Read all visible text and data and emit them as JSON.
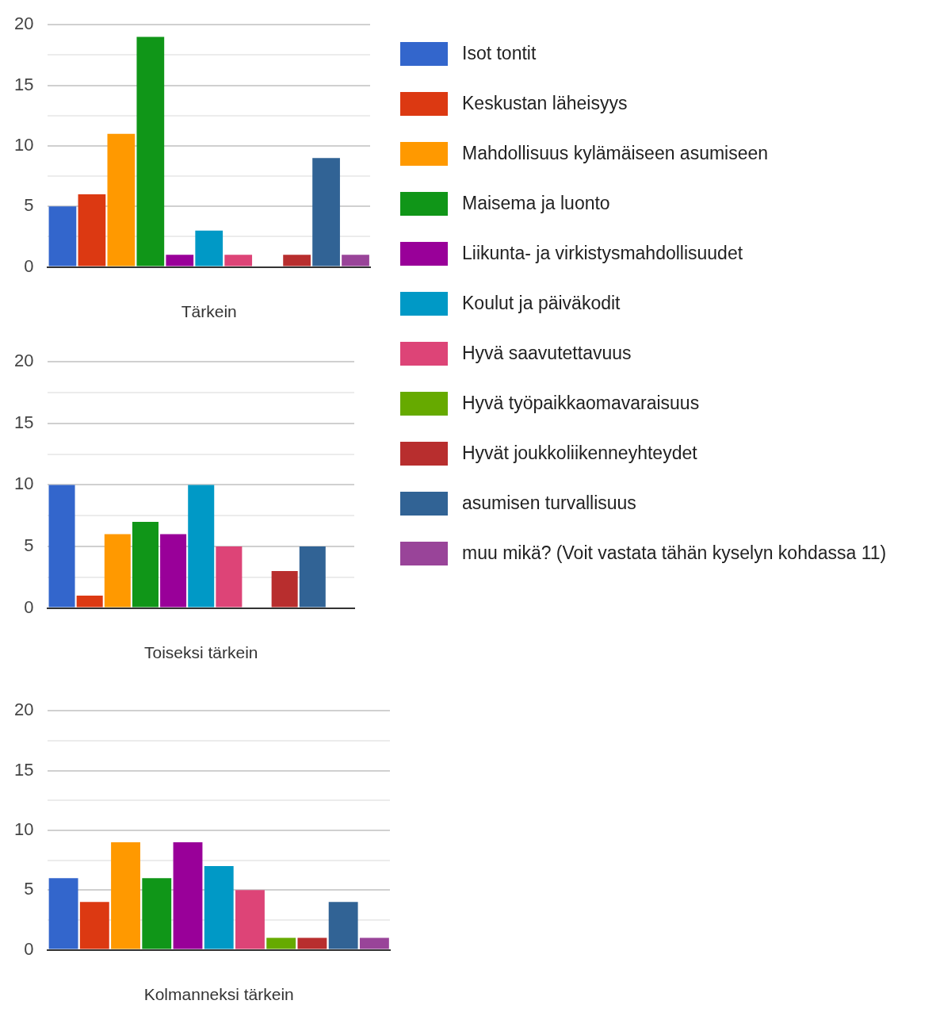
{
  "chart_data": [
    {
      "type": "bar",
      "xlabel": "Tärkein",
      "categories": [
        null,
        null,
        null,
        null,
        null,
        null,
        null,
        null,
        null,
        null,
        null
      ],
      "ylim": [
        0,
        20
      ],
      "yticks": [
        0,
        {
          "value": 2.5,
          "label": null
        },
        5,
        {
          "value": 7.5,
          "label": null
        },
        10,
        {
          "value": 12.5,
          "label": null
        },
        15,
        {
          "value": 17.5,
          "label": null
        },
        20
      ],
      "grid": "y",
      "legend": "right",
      "series": [
        {
          "name": "Isot tontit",
          "color": "#3366cc",
          "values": [
            5,
            null,
            null,
            null,
            null,
            null,
            null,
            null,
            null,
            null,
            null
          ]
        },
        {
          "name": "Keskustan läheisyys",
          "color": "#dc3912",
          "values": [
            null,
            6,
            null,
            null,
            null,
            null,
            null,
            null,
            null,
            null,
            null
          ]
        },
        {
          "name": "Mahdollisuus kylämäiseen asumiseen",
          "color": "#ff9900",
          "values": [
            null,
            null,
            11,
            null,
            null,
            null,
            null,
            null,
            null,
            null,
            null
          ]
        },
        {
          "name": "Maisema ja luonto",
          "color": "#109618",
          "values": [
            null,
            null,
            null,
            19,
            null,
            null,
            null,
            null,
            null,
            null,
            null
          ]
        },
        {
          "name": "Liikunta- ja virkistysmahdollisuudet",
          "color": "#990099",
          "values": [
            null,
            null,
            null,
            null,
            1,
            null,
            null,
            null,
            null,
            null,
            null
          ]
        },
        {
          "name": "Koulut ja päiväkodit",
          "color": "#0099c6",
          "values": [
            null,
            null,
            null,
            null,
            null,
            3,
            null,
            null,
            null,
            null,
            null
          ]
        },
        {
          "name": "Hyvä saavutettavuus",
          "color": "#dd4477",
          "values": [
            null,
            null,
            null,
            null,
            null,
            null,
            1,
            null,
            null,
            null,
            null
          ]
        },
        {
          "name": "Hyvä työpaikkaomavaraisuus",
          "color": "#66aa00",
          "values": [
            null,
            null,
            null,
            null,
            null,
            null,
            null,
            0,
            null,
            null,
            null
          ]
        },
        {
          "name": "Hyvät joukkoliikenneyhteydet",
          "color": "#b82e2e",
          "values": [
            null,
            null,
            null,
            null,
            null,
            null,
            null,
            null,
            1,
            null,
            null
          ]
        },
        {
          "name": "asumisen turvallisuus",
          "color": "#316395",
          "values": [
            null,
            null,
            null,
            null,
            null,
            null,
            null,
            null,
            null,
            9,
            null
          ]
        },
        {
          "name": "muu mikä? (Voit vastata tähän kyselyn kohdassa 11)",
          "color": "#994499",
          "values": [
            null,
            null,
            null,
            null,
            null,
            null,
            null,
            null,
            null,
            null,
            1
          ]
        }
      ]
    },
    {
      "type": "bar",
      "xlabel": "Toiseksi tärkein",
      "categories": [
        null,
        null,
        null,
        null,
        null,
        null,
        null,
        null,
        null,
        null,
        null
      ],
      "ylim": [
        0,
        20
      ],
      "yticks": [
        0,
        {
          "value": 2.5,
          "label": null
        },
        5,
        {
          "value": 7.5,
          "label": null
        },
        10,
        {
          "value": 12.5,
          "label": null
        },
        15,
        {
          "value": 17.5,
          "label": null
        },
        20
      ],
      "grid": "y",
      "series": [
        {
          "color": "#3366cc",
          "values": [
            10,
            null,
            null,
            null,
            null,
            null,
            null,
            null,
            null,
            null,
            null
          ]
        },
        {
          "color": "#dc3912",
          "values": [
            null,
            1,
            null,
            null,
            null,
            null,
            null,
            null,
            null,
            null,
            null
          ]
        },
        {
          "color": "#ff9900",
          "values": [
            null,
            null,
            6,
            null,
            null,
            null,
            null,
            null,
            null,
            null,
            null
          ]
        },
        {
          "color": "#109618",
          "values": [
            null,
            null,
            null,
            7,
            null,
            null,
            null,
            null,
            null,
            null,
            null
          ]
        },
        {
          "color": "#990099",
          "values": [
            null,
            null,
            null,
            null,
            6,
            null,
            null,
            null,
            null,
            null,
            null
          ]
        },
        {
          "color": "#0099c6",
          "values": [
            null,
            null,
            null,
            null,
            null,
            10,
            null,
            null,
            null,
            null,
            null
          ]
        },
        {
          "color": "#dd4477",
          "values": [
            null,
            null,
            null,
            null,
            null,
            null,
            5,
            null,
            null,
            null,
            null
          ]
        },
        {
          "color": "#66aa00",
          "values": [
            null,
            null,
            null,
            null,
            null,
            null,
            null,
            0,
            null,
            null,
            null
          ]
        },
        {
          "color": "#b82e2e",
          "values": [
            null,
            null,
            null,
            null,
            null,
            null,
            null,
            null,
            3,
            null,
            null
          ]
        },
        {
          "color": "#316395",
          "values": [
            null,
            null,
            null,
            null,
            null,
            null,
            null,
            null,
            null,
            5,
            null
          ]
        },
        {
          "color": "#994499",
          "values": [
            null,
            null,
            null,
            null,
            null,
            null,
            null,
            null,
            null,
            null,
            0
          ]
        }
      ]
    },
    {
      "type": "bar",
      "xlabel": "Kolmanneksi tärkein",
      "categories": [
        null,
        null,
        null,
        null,
        null,
        null,
        null,
        null,
        null,
        null,
        null
      ],
      "ylim": [
        0,
        20
      ],
      "yticks": [
        0,
        {
          "value": 2.5,
          "label": null
        },
        5,
        {
          "value": 7.5,
          "label": null
        },
        10,
        {
          "value": 12.5,
          "label": null
        },
        15,
        {
          "value": 17.5,
          "label": null
        },
        20
      ],
      "grid": "y",
      "series": [
        {
          "color": "#3366cc",
          "values": [
            6,
            null,
            null,
            null,
            null,
            null,
            null,
            null,
            null,
            null,
            null
          ]
        },
        {
          "color": "#dc3912",
          "values": [
            null,
            4,
            null,
            null,
            null,
            null,
            null,
            null,
            null,
            null,
            null
          ]
        },
        {
          "color": "#ff9900",
          "values": [
            null,
            null,
            9,
            null,
            null,
            null,
            null,
            null,
            null,
            null,
            null
          ]
        },
        {
          "color": "#109618",
          "values": [
            null,
            null,
            null,
            6,
            null,
            null,
            null,
            null,
            null,
            null,
            null
          ]
        },
        {
          "color": "#990099",
          "values": [
            null,
            null,
            null,
            null,
            9,
            null,
            null,
            null,
            null,
            null,
            null
          ]
        },
        {
          "color": "#0099c6",
          "values": [
            null,
            null,
            null,
            null,
            null,
            7,
            null,
            null,
            null,
            null,
            null
          ]
        },
        {
          "color": "#dd4477",
          "values": [
            null,
            null,
            null,
            null,
            null,
            null,
            5,
            null,
            null,
            null,
            null
          ]
        },
        {
          "color": "#66aa00",
          "values": [
            null,
            null,
            null,
            null,
            null,
            null,
            null,
            1,
            null,
            null,
            null
          ]
        },
        {
          "color": "#b82e2e",
          "values": [
            null,
            null,
            null,
            null,
            null,
            null,
            null,
            null,
            1,
            null,
            null
          ]
        },
        {
          "color": "#316395",
          "values": [
            null,
            null,
            null,
            null,
            null,
            null,
            null,
            null,
            null,
            4,
            null
          ]
        },
        {
          "color": "#994499",
          "values": [
            null,
            null,
            null,
            null,
            null,
            null,
            null,
            null,
            null,
            null,
            1
          ]
        }
      ]
    }
  ]
}
